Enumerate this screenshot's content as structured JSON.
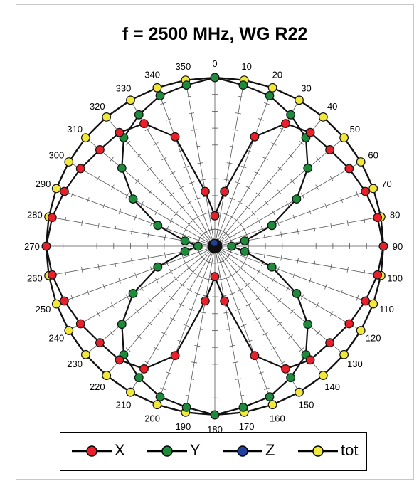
{
  "chart_data": {
    "type": "polar-line",
    "title": "f = 2500 MHz, WG R22",
    "angle_labels": [
      "0",
      "10",
      "20",
      "30",
      "40",
      "50",
      "60",
      "70",
      "80",
      "90",
      "100",
      "110",
      "120",
      "130",
      "140",
      "150",
      "160",
      "170",
      "180",
      "190",
      "200",
      "210",
      "220",
      "230",
      "240",
      "250",
      "260",
      "270",
      "280",
      "290",
      "300",
      "310",
      "320",
      "330",
      "340",
      "350"
    ],
    "radial_range": [
      0,
      1
    ],
    "grid": true,
    "legend_position": "bottom",
    "series": [
      {
        "name": "X",
        "color": "#e8202a",
        "angles": [
          0,
          10,
          20,
          30,
          40,
          50,
          60,
          70,
          80,
          90,
          100,
          110,
          120,
          130,
          140,
          150,
          160,
          170,
          180,
          190,
          200,
          210,
          220,
          230,
          240,
          250,
          260,
          270,
          280,
          290,
          300,
          310,
          320,
          330,
          340,
          350
        ],
        "values": [
          0.18,
          0.33,
          0.69,
          0.84,
          0.88,
          0.89,
          0.92,
          0.95,
          0.98,
          1.0,
          0.98,
          0.95,
          0.92,
          0.89,
          0.88,
          0.84,
          0.69,
          0.33,
          0.18,
          0.33,
          0.69,
          0.84,
          0.88,
          0.89,
          0.92,
          0.95,
          0.98,
          1.0,
          0.98,
          0.95,
          0.92,
          0.89,
          0.88,
          0.84,
          0.69,
          0.33
        ]
      },
      {
        "name": "Y",
        "color": "#1e8a3c",
        "angles": [
          0,
          10,
          20,
          30,
          40,
          50,
          60,
          70,
          80,
          90,
          100,
          110,
          120,
          130,
          140,
          150,
          160,
          170,
          180,
          190,
          200,
          210,
          220,
          230,
          240,
          250,
          260,
          270,
          280,
          290,
          300,
          310,
          320,
          330,
          340,
          350
        ],
        "values": [
          1.0,
          0.97,
          0.95,
          0.9,
          0.84,
          0.72,
          0.56,
          0.36,
          0.18,
          0.1,
          0.18,
          0.36,
          0.56,
          0.72,
          0.84,
          0.9,
          0.95,
          0.97,
          1.0,
          0.97,
          0.95,
          0.9,
          0.84,
          0.72,
          0.56,
          0.36,
          0.18,
          0.1,
          0.18,
          0.36,
          0.56,
          0.72,
          0.84,
          0.9,
          0.95,
          0.97
        ]
      },
      {
        "name": "Z",
        "color": "#1f3f9a",
        "angles": [
          0,
          10,
          20,
          30,
          40,
          50,
          60,
          70,
          80,
          90,
          100,
          110,
          120,
          130,
          140,
          150,
          160,
          170,
          180,
          190,
          200,
          210,
          220,
          230,
          240,
          250,
          260,
          270,
          280,
          290,
          300,
          310,
          320,
          330,
          340,
          350
        ],
        "values": [
          0.02,
          0.02,
          0.02,
          0.02,
          0.02,
          0.02,
          0.02,
          0.02,
          0.02,
          0.02,
          0.02,
          0.02,
          0.02,
          0.02,
          0.02,
          0.02,
          0.02,
          0.02,
          0.02,
          0.02,
          0.02,
          0.02,
          0.02,
          0.02,
          0.02,
          0.02,
          0.02,
          0.02,
          0.02,
          0.02,
          0.02,
          0.02,
          0.02,
          0.02,
          0.02,
          0.02
        ]
      },
      {
        "name": "tot",
        "color": "#f2e83a",
        "angles": [
          0,
          10,
          20,
          30,
          40,
          50,
          60,
          70,
          80,
          90,
          100,
          110,
          120,
          130,
          140,
          150,
          160,
          170,
          180,
          190,
          200,
          210,
          220,
          230,
          240,
          250,
          260,
          270,
          280,
          290,
          300,
          310,
          320,
          330,
          340,
          350
        ],
        "values": [
          1.0,
          1.0,
          1.0,
          1.0,
          1.0,
          1.0,
          1.0,
          1.0,
          1.0,
          1.0,
          1.0,
          1.0,
          1.0,
          1.0,
          1.0,
          1.0,
          1.0,
          1.0,
          1.0,
          1.0,
          1.0,
          1.0,
          1.0,
          1.0,
          1.0,
          1.0,
          1.0,
          1.0,
          1.0,
          1.0,
          1.0,
          1.0,
          1.0,
          1.0,
          1.0,
          1.0
        ]
      }
    ]
  },
  "legend": {
    "items": [
      {
        "label": "X",
        "color": "#e8202a"
      },
      {
        "label": "Y",
        "color": "#1e8a3c"
      },
      {
        "label": "Z",
        "color": "#1f3f9a"
      },
      {
        "label": "tot",
        "color": "#f2e83a"
      }
    ]
  }
}
